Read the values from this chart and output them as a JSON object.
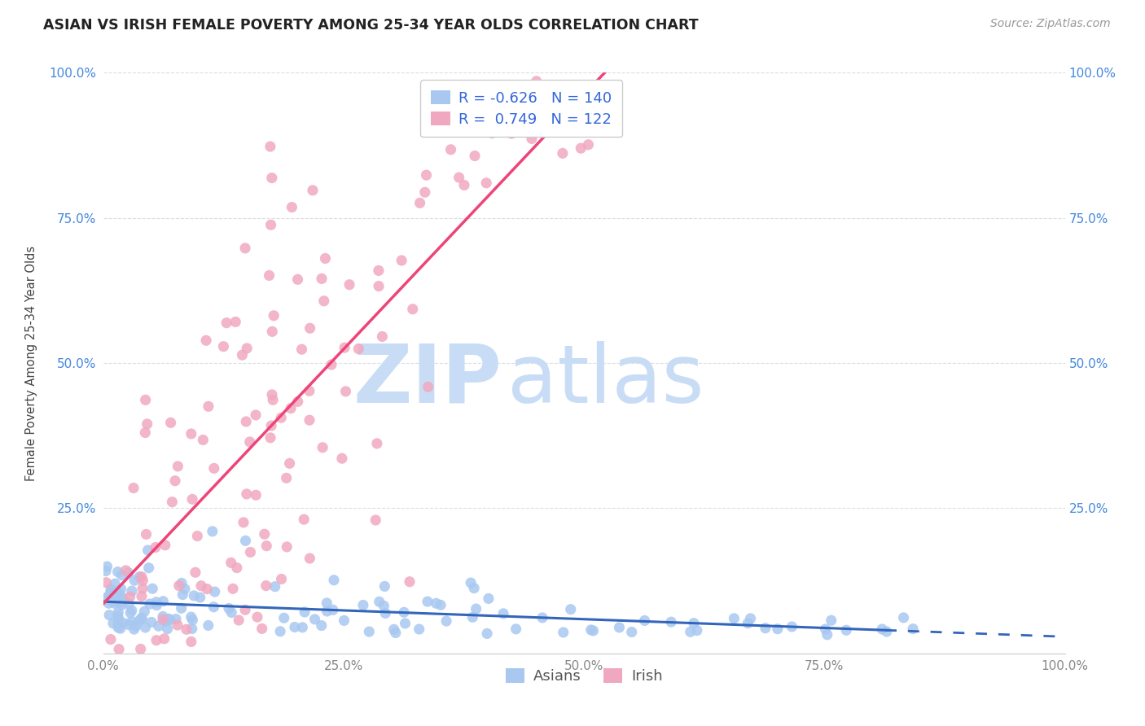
{
  "title": "ASIAN VS IRISH FEMALE POVERTY AMONG 25-34 YEAR OLDS CORRELATION CHART",
  "source": "Source: ZipAtlas.com",
  "ylabel": "Female Poverty Among 25-34 Year Olds",
  "xlim": [
    0,
    1
  ],
  "ylim": [
    0,
    1
  ],
  "xticks": [
    0.0,
    0.25,
    0.5,
    0.75,
    1.0
  ],
  "xticklabels": [
    "0.0%",
    "25.0%",
    "50.0%",
    "75.0%",
    "100.0%"
  ],
  "yticks": [
    0.0,
    0.25,
    0.5,
    0.75,
    1.0
  ],
  "yticklabels": [
    "",
    "25.0%",
    "50.0%",
    "75.0%",
    "100.0%"
  ],
  "asian_color": "#a8c8f0",
  "irish_color": "#f0a8c0",
  "asian_R": -0.626,
  "asian_N": 140,
  "irish_R": 0.749,
  "irish_N": 122,
  "watermark_zip": "ZIP",
  "watermark_atlas": "atlas",
  "watermark_color": "#c8ddf5",
  "background_color": "#ffffff",
  "title_fontsize": 12.5,
  "axis_label_fontsize": 10.5,
  "tick_fontsize": 11,
  "legend_fontsize": 13,
  "source_fontsize": 10,
  "asian_line_color": "#3366bb",
  "irish_line_color": "#ee4477",
  "tick_color_y": "#4488dd",
  "tick_color_x": "#888888",
  "corr_text_color": "#3366dd",
  "grid_color": "#dddddd",
  "grid_style": "--"
}
